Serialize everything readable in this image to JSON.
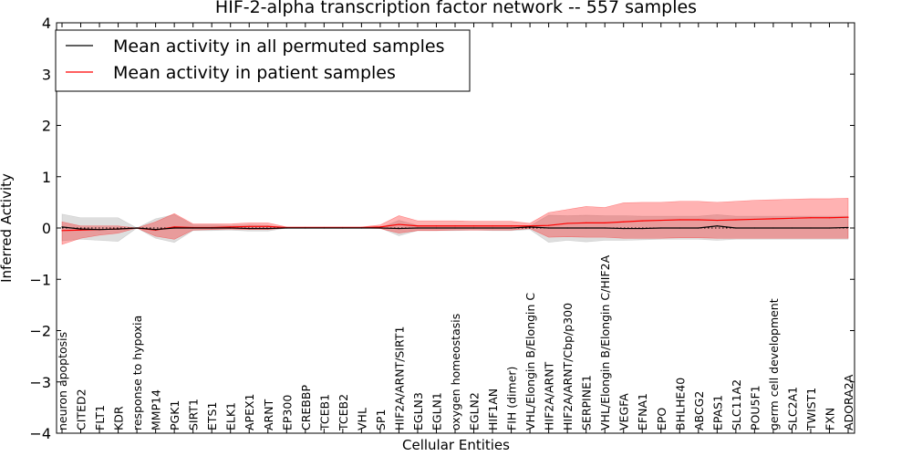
{
  "chart_data": {
    "type": "line",
    "title": "HIF-2-alpha transcription factor network -- 557 samples",
    "xlabel": "Cellular Entities",
    "ylabel": "Inferred Activity",
    "ylim": [
      -4,
      4
    ],
    "yticks": [
      -4,
      -3,
      -2,
      -1,
      0,
      1,
      2,
      3,
      4
    ],
    "ytick_labels": [
      "−4",
      "−3",
      "−2",
      "−1",
      "0",
      "1",
      "2",
      "3",
      "4"
    ],
    "legend_position": "upper-left",
    "categories": [
      "neuron apoptosis",
      "CITED2",
      "FLT1",
      "KDR",
      "response to hypoxia",
      "MMP14",
      "PGK1",
      "SIRT1",
      "ETS1",
      "ELK1",
      "APEX1",
      "ARNT",
      "EP300",
      "CREBBP",
      "TCEB1",
      "TCEB2",
      "VHL",
      "SP1",
      "HIF2A/ARNT/SIRT1",
      "EGLN3",
      "EGLN1",
      "oxygen homeostasis",
      "EGLN2",
      "HIF1AN",
      "FIH (dimer)",
      "VHL/Elongin B/Elongin C",
      "HIF2A/ARNT",
      "HIF2A/ARNT/Cbp/p300",
      "SERPINE1",
      "VHL/Elongin B/Elongin C/HIF2A",
      "VEGFA",
      "EFNA1",
      "EPO",
      "BHLHE40",
      "ABCG2",
      "EPAS1",
      "SLC11A2",
      "POU5F1",
      "germ cell development",
      "SLC2A1",
      "TWIST1",
      "FXN",
      "ADORA2A"
    ],
    "series": [
      {
        "name": "Mean activity in all permuted samples",
        "color": "#000000",
        "values": [
          0.02,
          -0.02,
          -0.03,
          -0.02,
          0.0,
          -0.03,
          0.0,
          0.0,
          0.0,
          0.0,
          -0.01,
          -0.01,
          0.0,
          0.0,
          0.0,
          0.0,
          0.0,
          0.0,
          -0.01,
          0.0,
          0.0,
          0.0,
          0.0,
          0.0,
          0.0,
          0.02,
          0.0,
          0.0,
          0.0,
          0.0,
          -0.01,
          -0.01,
          0.0,
          0.0,
          0.0,
          0.04,
          0.0,
          0.0,
          0.0,
          0.0,
          0.0,
          0.0,
          0.01
        ],
        "band_low": [
          -0.25,
          -0.22,
          -0.24,
          -0.26,
          0.0,
          -0.2,
          -0.28,
          -0.05,
          -0.05,
          -0.04,
          -0.06,
          -0.06,
          0.0,
          0.0,
          0.0,
          0.0,
          0.0,
          0.0,
          -0.15,
          -0.05,
          -0.05,
          -0.05,
          -0.04,
          -0.05,
          -0.05,
          -0.03,
          -0.28,
          -0.24,
          -0.27,
          -0.24,
          -0.24,
          -0.23,
          -0.22,
          -0.22,
          -0.22,
          -0.24,
          -0.22,
          -0.22,
          -0.22,
          -0.22,
          -0.22,
          -0.22,
          -0.22
        ],
        "band_high": [
          0.27,
          0.2,
          0.2,
          0.2,
          0.0,
          0.18,
          0.26,
          0.06,
          0.06,
          0.05,
          0.06,
          0.05,
          0.0,
          0.0,
          0.0,
          0.0,
          0.0,
          0.0,
          0.15,
          0.05,
          0.05,
          0.05,
          0.05,
          0.05,
          0.05,
          0.04,
          0.25,
          0.24,
          0.25,
          0.24,
          0.24,
          0.23,
          0.23,
          0.23,
          0.23,
          0.26,
          0.23,
          0.23,
          0.23,
          0.23,
          0.23,
          0.23,
          0.23
        ]
      },
      {
        "name": "Mean activity in patient samples",
        "color": "#ff0000",
        "values": [
          -0.05,
          -0.04,
          -0.03,
          -0.02,
          0.0,
          -0.04,
          0.02,
          0.01,
          0.01,
          0.02,
          0.03,
          0.03,
          0.01,
          0.01,
          0.01,
          0.01,
          0.01,
          0.02,
          0.07,
          0.04,
          0.04,
          0.04,
          0.04,
          0.04,
          0.04,
          0.04,
          0.05,
          0.09,
          0.1,
          0.1,
          0.12,
          0.14,
          0.15,
          0.16,
          0.16,
          0.15,
          0.16,
          0.17,
          0.18,
          0.19,
          0.2,
          0.2,
          0.21
        ],
        "band_low": [
          -0.32,
          -0.2,
          -0.14,
          -0.1,
          0.0,
          -0.16,
          -0.22,
          -0.04,
          -0.03,
          -0.02,
          -0.03,
          -0.03,
          0.0,
          0.0,
          0.0,
          0.0,
          0.0,
          -0.01,
          -0.1,
          -0.05,
          -0.05,
          -0.04,
          -0.04,
          -0.04,
          -0.04,
          -0.01,
          -0.18,
          -0.17,
          -0.18,
          -0.18,
          -0.2,
          -0.2,
          -0.2,
          -0.19,
          -0.19,
          -0.2,
          -0.2,
          -0.2,
          -0.2,
          -0.2,
          -0.2,
          -0.2,
          -0.2
        ],
        "band_high": [
          0.12,
          0.04,
          0.04,
          0.04,
          0.0,
          0.12,
          0.28,
          0.08,
          0.08,
          0.08,
          0.1,
          0.1,
          0.02,
          0.02,
          0.02,
          0.02,
          0.02,
          0.06,
          0.24,
          0.14,
          0.14,
          0.14,
          0.13,
          0.13,
          0.13,
          0.09,
          0.3,
          0.36,
          0.42,
          0.4,
          0.49,
          0.5,
          0.5,
          0.52,
          0.52,
          0.5,
          0.52,
          0.54,
          0.55,
          0.56,
          0.57,
          0.57,
          0.58
        ]
      }
    ]
  }
}
